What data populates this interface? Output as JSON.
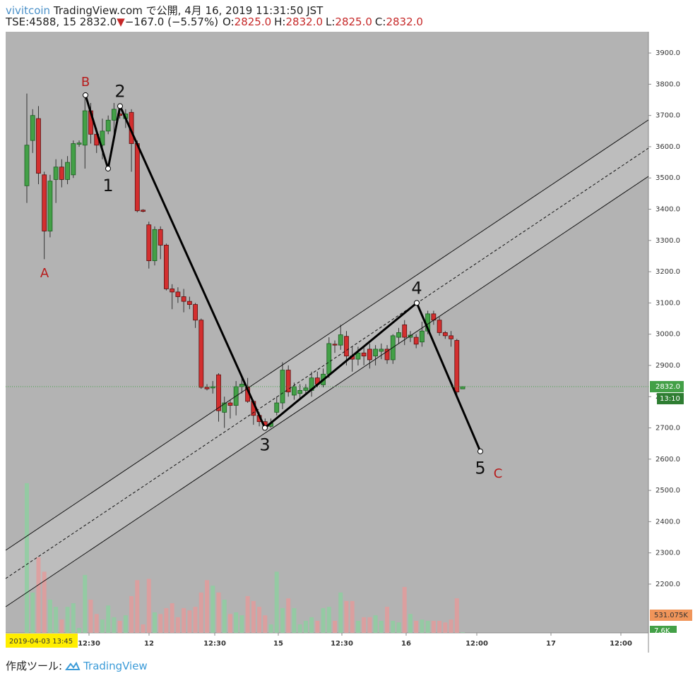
{
  "header": {
    "publisher": "vivitcoin",
    "published": "TradingView.com で公開, 4月 16, 2019 11:31:50 JST",
    "symbol": "TSE:4588, 15",
    "last": "2832.0",
    "arrow": "▼",
    "change": "−167.0 (−5.57%)",
    "ohlc": [
      {
        "label": "O:",
        "value": "2825.0"
      },
      {
        "label": "H:",
        "value": "2832.0"
      },
      {
        "label": "L:",
        "value": "2825.0"
      },
      {
        "label": "C:",
        "value": "2832.0"
      }
    ]
  },
  "footer": {
    "made_with": "作成ツール:",
    "brand": "TradingView"
  },
  "chart_data": {
    "type": "candlestick",
    "open": [
      3475,
      3620,
      3690,
      3510,
      3330,
      3495,
      3535,
      3495,
      3510,
      3608,
      3605,
      3715,
      3640,
      3605,
      3650,
      3685,
      3705,
      3690,
      3710,
      3610,
      3397,
      3350,
      3235,
      3335,
      3285,
      3145,
      3135,
      3120,
      3105,
      3095,
      3045,
      2830,
      2828,
      2870,
      2750,
      2780,
      2772,
      2832,
      2832,
      2785,
      2740,
      2720,
      2705,
      2750,
      2780,
      2885,
      2805,
      2810,
      2820,
      2820,
      2860,
      2838,
      2872,
      2968,
      2965,
      2993,
      2930,
      2920,
      2940,
      2952,
      2930,
      2945,
      2952,
      2918,
      2990,
      3030,
      2990,
      2990,
      2975,
      3010,
      3065,
      3045,
      3005,
      2995,
      2980,
      2825
    ],
    "high": [
      3770,
      3720,
      3730,
      3520,
      3510,
      3560,
      3560,
      3570,
      3620,
      3620,
      3760,
      3740,
      3660,
      3690,
      3700,
      3740,
      3720,
      3720,
      3720,
      3620,
      3400,
      3360,
      3345,
      3345,
      3290,
      3160,
      3150,
      3145,
      3120,
      3100,
      3050,
      2840,
      2850,
      2875,
      2800,
      2790,
      2850,
      2860,
      2860,
      2790,
      2750,
      2730,
      2730,
      2800,
      2910,
      2900,
      2845,
      2840,
      2840,
      2880,
      2880,
      2890,
      2990,
      2980,
      3030,
      3010,
      2960,
      2960,
      2960,
      2970,
      2965,
      2970,
      2965,
      3000,
      3020,
      3045,
      3010,
      3000,
      3040,
      3075,
      3075,
      3055,
      3010,
      3010,
      2985,
      2832
    ],
    "low": [
      3420,
      3580,
      3480,
      3240,
      3310,
      3420,
      3470,
      3480,
      3500,
      3600,
      3530,
      3610,
      3580,
      3560,
      3640,
      3640,
      3690,
      3660,
      3520,
      3390,
      3390,
      3210,
      3220,
      3240,
      3140,
      3080,
      3100,
      3070,
      3080,
      3020,
      2825,
      2820,
      2810,
      2720,
      2700,
      2730,
      2740,
      2810,
      2780,
      2710,
      2705,
      2695,
      2700,
      2740,
      2760,
      2800,
      2790,
      2795,
      2805,
      2800,
      2830,
      2830,
      2860,
      2940,
      2950,
      2900,
      2880,
      2900,
      2900,
      2890,
      2900,
      2920,
      2905,
      2905,
      2970,
      2965,
      2975,
      2955,
      2960,
      3000,
      3030,
      2995,
      2985,
      2960,
      2805,
      2825
    ],
    "close": [
      3605,
      3700,
      3515,
      3330,
      3490,
      3535,
      3495,
      3550,
      3610,
      3612,
      3715,
      3640,
      3605,
      3650,
      3685,
      3720,
      3700,
      3705,
      3610,
      3395,
      3393,
      3235,
      3335,
      3285,
      3145,
      3135,
      3120,
      3105,
      3095,
      3045,
      2830,
      2825,
      2832,
      2755,
      2780,
      2772,
      2832,
      2840,
      2785,
      2740,
      2720,
      2700,
      2715,
      2780,
      2885,
      2815,
      2832,
      2820,
      2828,
      2860,
      2840,
      2872,
      2970,
      2965,
      2998,
      2930,
      2920,
      2940,
      2930,
      2918,
      2952,
      2952,
      2918,
      2995,
      3005,
      2990,
      2997,
      2968,
      3010,
      3065,
      3045,
      3005,
      2995,
      2985,
      2815,
      2832
    ],
    "volume": [
      2300,
      620,
      1160,
      940,
      510,
      400,
      205,
      400,
      455,
      75,
      890,
      510,
      290,
      205,
      420,
      240,
      185,
      270,
      565,
      810,
      130,
      830,
      315,
      290,
      380,
      455,
      240,
      380,
      345,
      400,
      620,
      810,
      725,
      620,
      510,
      290,
      315,
      270,
      565,
      490,
      400,
      270,
      130,
      940,
      380,
      530,
      380,
      130,
      185,
      240,
      185,
      380,
      400,
      185,
      620,
      490,
      490,
      185,
      240,
      240,
      270,
      185,
      400,
      185,
      160,
      705,
      290,
      185,
      205,
      185,
      185,
      185,
      160,
      205,
      531,
      8
    ],
    "up_color": "#43a047",
    "down_color": "#d32f2f",
    "volume_up_color": "#8ccf9f",
    "volume_down_color": "#e59a9a",
    "ylim": [
      2044,
      3968
    ],
    "volume_lim": [
      0,
      9240
    ],
    "yticks": [
      {
        "value": 2200,
        "label": "2200.0"
      },
      {
        "value": 2300,
        "label": "2300.0"
      },
      {
        "value": 2400,
        "label": "2400.0"
      },
      {
        "value": 2500,
        "label": "2500.0"
      },
      {
        "value": 2600,
        "label": "2600.0"
      },
      {
        "value": 2700,
        "label": "2700.0"
      },
      {
        "value": 2800,
        "label": "2800.0"
      },
      {
        "value": 2900,
        "label": "2900.0"
      },
      {
        "value": 3000,
        "label": "3000.0"
      },
      {
        "value": 3100,
        "label": "3100.0"
      },
      {
        "value": 3200,
        "label": "3200.0"
      },
      {
        "value": 3300,
        "label": "3300.0"
      },
      {
        "value": 3400,
        "label": "3400.0"
      },
      {
        "value": 3500,
        "label": "3500.0"
      },
      {
        "value": 3600,
        "label": "3600.0"
      },
      {
        "value": 3700,
        "label": "3700.0"
      },
      {
        "value": 3800,
        "label": "3800.0"
      },
      {
        "value": 3900,
        "label": "3900.0"
      }
    ],
    "xtick_labels": [
      "12:30",
      "12",
      "12:30",
      "15",
      "12:30",
      "16",
      "12:00",
      "17",
      "12:00"
    ],
    "grid": false,
    "last_price": {
      "value": 2832,
      "label": "2832.0"
    },
    "countdown": "13:10",
    "volume_labels": [
      "531.075K",
      "7.6K"
    ],
    "cursor_date": "2019-04-03   13:45",
    "waves": [
      {
        "label": "B",
        "value": 3765
      },
      {
        "label": "1",
        "value": 3530
      },
      {
        "label": "2",
        "value": 3730
      },
      {
        "label": "3",
        "value": 2700
      },
      {
        "label": "4",
        "value": 3100
      },
      {
        "label": "5",
        "value": 2625
      }
    ],
    "annotations": [
      "A",
      "C"
    ]
  }
}
